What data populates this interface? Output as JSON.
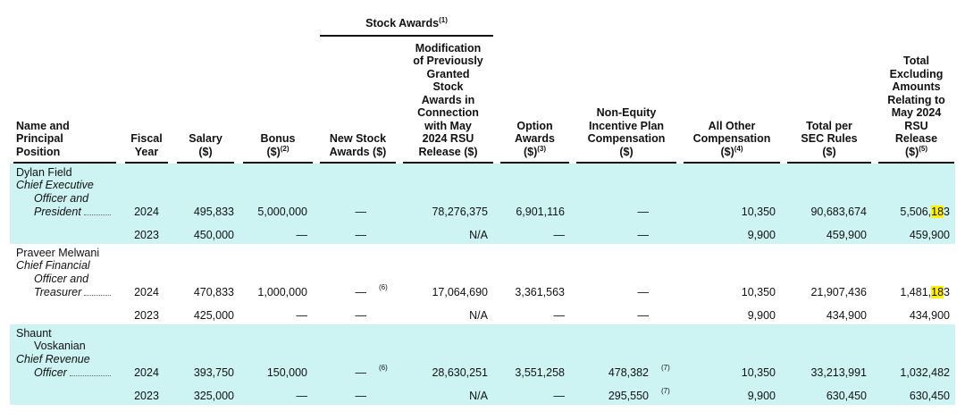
{
  "table": {
    "group_header": {
      "text": "Stock Awards",
      "note": "(1)"
    },
    "columns": [
      {
        "lines": [
          "Name and",
          "Principal",
          "Position"
        ]
      },
      {
        "lines": [
          "Fiscal",
          "Year"
        ]
      },
      {
        "lines": [
          "Salary",
          "($)"
        ]
      },
      {
        "lines": [
          "Bonus",
          "($)"
        ],
        "note": "(2)"
      },
      {
        "lines": [
          "New Stock",
          "Awards ($)"
        ]
      },
      {
        "lines": [
          "Modification",
          "of Previously",
          "Granted",
          "Stock",
          "Awards in",
          "Connection",
          "with May",
          "2024 RSU",
          "Release ($)"
        ]
      },
      {
        "lines": [
          "Option",
          "Awards",
          "($)"
        ],
        "note": "(3)"
      },
      {
        "lines": [
          "Non-Equity",
          "Incentive Plan",
          "Compensation",
          "($)"
        ]
      },
      {
        "lines": [
          "All Other",
          "Compensation",
          "($)"
        ],
        "note": "(4)"
      },
      {
        "lines": [
          "Total per",
          "SEC Rules",
          "($)"
        ]
      },
      {
        "lines": [
          "Total",
          "Excluding",
          "Amounts",
          "Relating to",
          "May 2024",
          "RSU",
          "Release",
          "($)"
        ],
        "note": "(5)"
      }
    ],
    "executives": [
      {
        "name_lines": [
          "Dylan Field"
        ],
        "title_lines": [
          "Chief Executive",
          "Officer and",
          "President"
        ],
        "rows": [
          [
            "2024",
            "495,833",
            "5,000,000",
            "—",
            "78,276,375",
            "6,901,116",
            "—",
            "10,350",
            "90,683,674",
            {
              "parts": [
                {
                  "text": "5,506,"
                },
                {
                  "text": "18",
                  "highlight": true
                },
                {
                  "text": "3"
                }
              ]
            }
          ],
          [
            "2023",
            "450,000",
            "—",
            "—",
            "N/A",
            "—",
            "—",
            "9,900",
            "459,900",
            "459,900"
          ]
        ]
      },
      {
        "name_lines": [
          "Praveer Melwani"
        ],
        "title_lines": [
          "Chief Financial",
          "Officer and",
          "Treasurer"
        ],
        "rows": [
          [
            "2024",
            "470,833",
            "1,000,000",
            {
              "text": "—",
              "note": "(6)"
            },
            "17,064,690",
            "3,361,563",
            "—",
            "10,350",
            "21,907,436",
            {
              "parts": [
                {
                  "text": "1,481,"
                },
                {
                  "text": "18",
                  "highlight": true
                },
                {
                  "text": "3"
                }
              ]
            }
          ],
          [
            "2023",
            "425,000",
            "—",
            "—",
            "N/A",
            "—",
            "—",
            "9,900",
            "434,900",
            "434,900"
          ]
        ]
      },
      {
        "name_lines": [
          "Shaunt",
          "Voskanian"
        ],
        "title_lines": [
          "Chief Revenue",
          "Officer"
        ],
        "rows": [
          [
            "2024",
            "393,750",
            "150,000",
            {
              "text": "—",
              "note": "(6)"
            },
            "28,630,251",
            "3,551,258",
            {
              "text": "478,382",
              "note": "(7)"
            },
            "10,350",
            "33,213,991",
            "1,032,482"
          ],
          [
            "2023",
            "325,000",
            "—",
            "—",
            "N/A",
            "—",
            {
              "text": "295,550",
              "note": "(7)"
            },
            "9,900",
            "630,450",
            "630,450"
          ]
        ]
      }
    ]
  }
}
